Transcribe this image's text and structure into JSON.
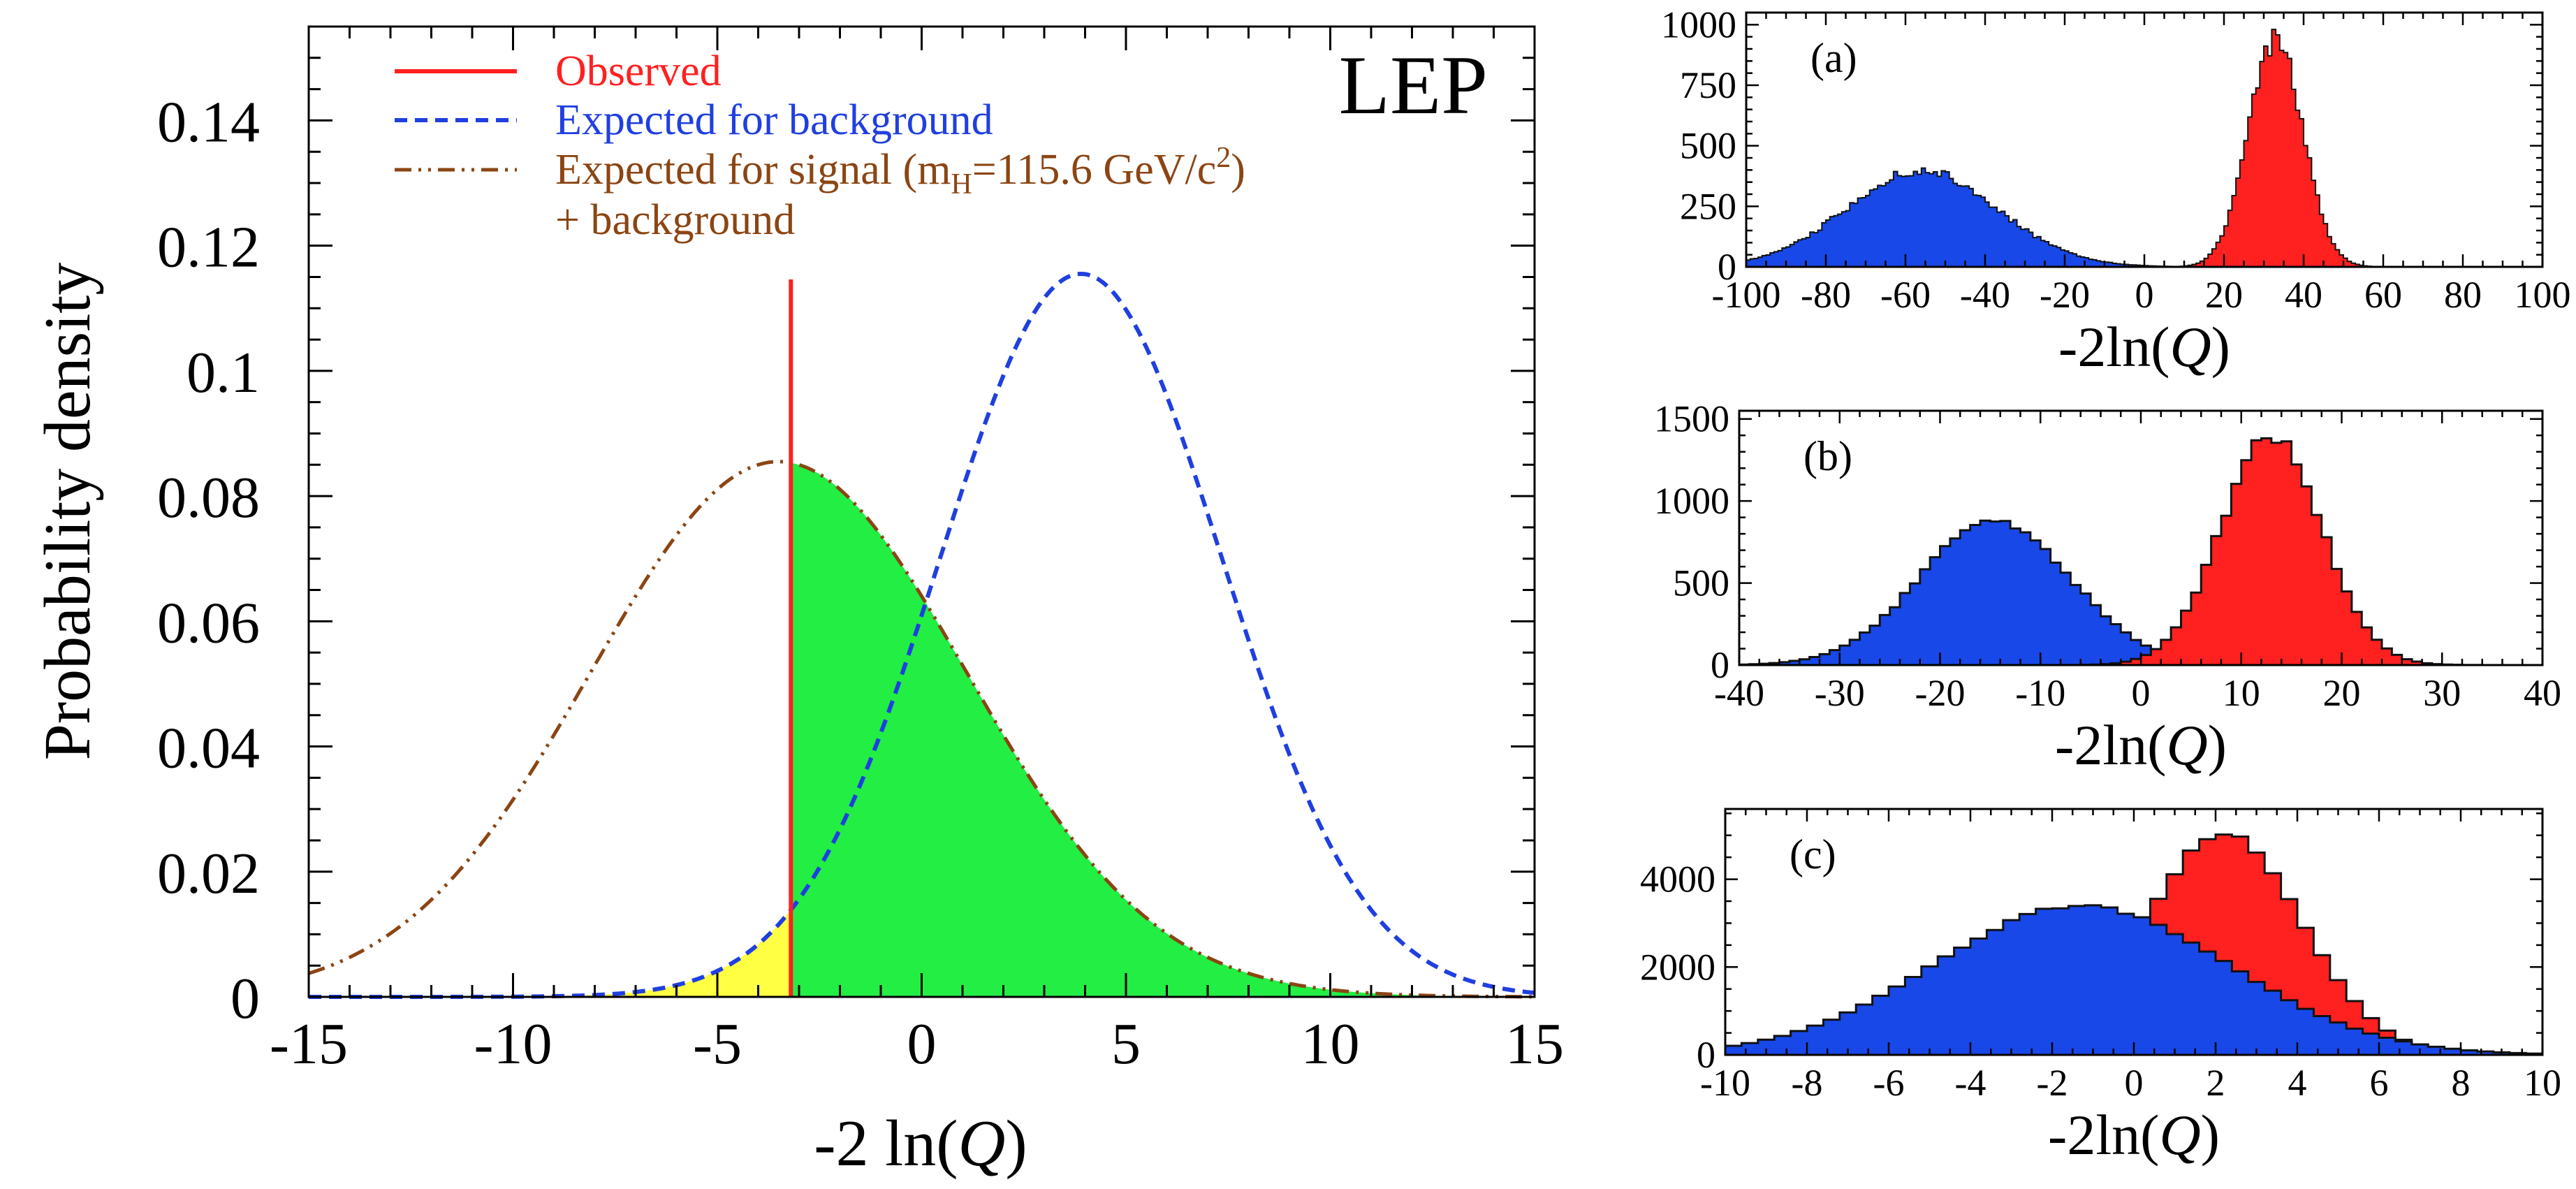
{
  "colors": {
    "observed": "#ff2020",
    "background_expected": "#1f3fe0",
    "signal_expected": "#8b4513",
    "green_fill": "#22ee44",
    "yellow_fill": "#ffff44",
    "blue_hist": "#1848e8",
    "red_hist": "#ff2020"
  },
  "chart_data": [
    {
      "type": "line",
      "id": "main",
      "annotation": "LEP",
      "xlabel": "-2 ln(Q)",
      "ylabel": "Probability density",
      "xlim": [
        -15,
        15
      ],
      "ylim": [
        0,
        0.155
      ],
      "xticks": [
        -15,
        -10,
        -5,
        0,
        5,
        10,
        15
      ],
      "yticks": [
        0,
        0.02,
        0.04,
        0.06,
        0.08,
        0.1,
        0.12,
        0.14
      ],
      "ytick_labels": [
        "0",
        "0.02",
        "0.04",
        "0.06",
        "0.08",
        "0.1",
        "0.12",
        "0.14"
      ],
      "observed_x": -3.2,
      "legend": [
        {
          "text": "Observed",
          "style": "solid",
          "color": "#ff2020"
        },
        {
          "text": "Expected for background",
          "style": "dashed",
          "color": "#1f3fe0"
        },
        {
          "text": "Expected for signal (m",
          "sub": "H",
          "tail": "=115.6 GeV/c",
          "sup": "2",
          "close": ")",
          "style": "dashdot",
          "color": "#8b4513"
        },
        {
          "text": "+ background",
          "style": "none",
          "color": "#8b4513"
        }
      ],
      "series": [
        {
          "name": "Expected for background",
          "mean": 3.9,
          "sigma": 3.45,
          "peak": 0.1155
        },
        {
          "name": "Expected for signal (mH=115.6 GeV/c2) + background",
          "mean": -3.5,
          "sigma": 4.6,
          "peak": 0.0855
        }
      ]
    },
    {
      "type": "bar",
      "id": "a",
      "panel_label": "(a)",
      "xlabel": "-2ln(Q)",
      "xlim": [
        -100,
        100
      ],
      "ylim": [
        0,
        1050
      ],
      "xticks": [
        -100,
        -80,
        -60,
        -40,
        -20,
        0,
        20,
        40,
        60,
        80,
        100
      ],
      "yticks": [
        0,
        250,
        500,
        750,
        1000
      ],
      "series": [
        {
          "name": "blue",
          "mean": -56,
          "sigma": 19,
          "peak": 395
        },
        {
          "name": "red",
          "mean": 33,
          "sigma": 6.8,
          "peak": 945
        }
      ]
    },
    {
      "type": "bar",
      "id": "b",
      "panel_label": "(b)",
      "xlabel": "-2ln(Q)",
      "xlim": [
        -40,
        40
      ],
      "ylim": [
        0,
        1550
      ],
      "xticks": [
        -40,
        -30,
        -20,
        -10,
        0,
        10,
        20,
        30,
        40
      ],
      "yticks": [
        0,
        500,
        1000,
        1500
      ],
      "series": [
        {
          "name": "blue",
          "mean": -14.5,
          "sigma": 7.5,
          "peak": 880
        },
        {
          "name": "red",
          "mean": 13,
          "sigma": 5.0,
          "peak": 1400
        }
      ]
    },
    {
      "type": "bar",
      "id": "c",
      "panel_label": "(c)",
      "xlabel": "-2ln(Q)",
      "xlim": [
        -10,
        10
      ],
      "ylim": [
        0,
        5600
      ],
      "xticks": [
        -10,
        -8,
        -6,
        -4,
        -2,
        0,
        2,
        4,
        6,
        8,
        10
      ],
      "yticks": [
        0,
        2000,
        4000
      ],
      "series": [
        {
          "name": "blue",
          "mean": -1.3,
          "sigma": 3.6,
          "peak": 3400
        },
        {
          "name": "red",
          "mean": 2.2,
          "sigma": 1.9,
          "peak": 5050
        }
      ]
    }
  ]
}
